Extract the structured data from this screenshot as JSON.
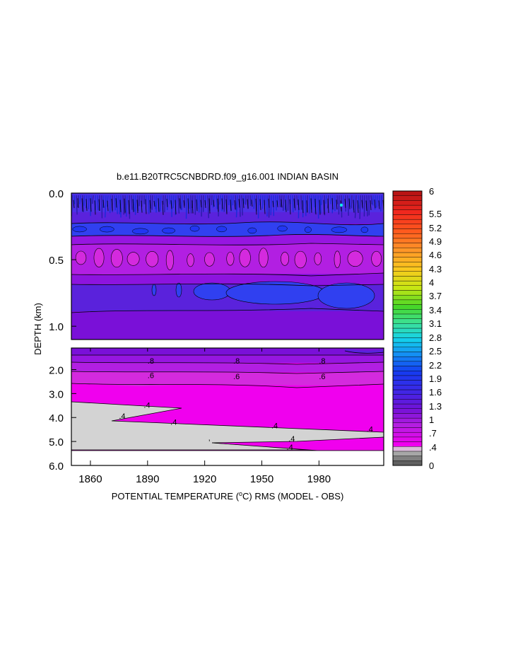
{
  "chart_data": {
    "type": "heatmap",
    "title": "b.e11.B20TRC5CNBDRD.f09_g16.001 INDIAN BASIN",
    "xlabel_prefix": "POTENTIAL TEMPERATURE (",
    "xlabel_unit_sup": "o",
    "xlabel_suffix": "C) RMS (MODEL - OBS)",
    "ylabel": "DEPTH (km)",
    "x_range": [
      1850,
      2014
    ],
    "x_ticks": [
      1860,
      1890,
      1920,
      1950,
      1980
    ],
    "top_panel": {
      "depth_range": [
        0.0,
        1.1
      ],
      "y_ticks": [
        0.0,
        0.5,
        1.0
      ],
      "y_tick_labels": [
        "0.0",
        "0.5",
        "1.0"
      ],
      "depth_profile": [
        {
          "depth": 0.02,
          "value": 1.7
        },
        {
          "depth": 0.12,
          "value": 1.4
        },
        {
          "depth": 0.22,
          "value": 1.3
        },
        {
          "depth": 0.3,
          "value": 1.05
        },
        {
          "depth": 0.4,
          "value": 0.85
        },
        {
          "depth": 0.5,
          "value": 0.75
        },
        {
          "depth": 0.6,
          "value": 0.9
        },
        {
          "depth": 0.75,
          "value": 1.15
        },
        {
          "depth": 0.9,
          "value": 1.1
        },
        {
          "depth": 1.05,
          "value": 0.95
        }
      ]
    },
    "bottom_panel": {
      "depth_range": [
        1.1,
        6.0
      ],
      "y_ticks": [
        2.0,
        3.0,
        4.0,
        5.0,
        6.0
      ],
      "y_tick_labels": [
        "2.0",
        "3.0",
        "4.0",
        "5.0",
        "6.0"
      ],
      "contour_labels": [
        {
          "text": ".8",
          "x": 1890,
          "depth": 1.75
        },
        {
          "text": ".8",
          "x": 1935,
          "depth": 1.75
        },
        {
          "text": ".8",
          "x": 1980,
          "depth": 1.75
        },
        {
          "text": ".6",
          "x": 1890,
          "depth": 2.35
        },
        {
          "text": ".6",
          "x": 1935,
          "depth": 2.4
        },
        {
          "text": ".6",
          "x": 1980,
          "depth": 2.4
        },
        {
          "text": ".4",
          "x": 1888,
          "depth": 3.6
        },
        {
          "text": ".4",
          "x": 1875,
          "depth": 4.05
        },
        {
          "text": ".4",
          "x": 1902,
          "depth": 4.3
        },
        {
          "text": ".4",
          "x": 1955,
          "depth": 4.45
        },
        {
          "text": ".4",
          "x": 2005,
          "depth": 4.6
        },
        {
          "text": ".4",
          "x": 1964,
          "depth": 5.0
        },
        {
          "text": ".4",
          "x": 1963,
          "depth": 5.35
        },
        {
          "text": "’",
          "x": 1922,
          "depth": 5.15
        }
      ]
    },
    "colorbar": {
      "labels": [
        "6",
        "5.5",
        "5.2",
        "4.9",
        "4.6",
        "4.3",
        "4",
        "3.7",
        "3.4",
        "3.1",
        "2.8",
        "2.5",
        "2.2",
        "1.9",
        "1.6",
        "1.3",
        "1",
        ".7",
        ".4",
        "0"
      ]
    },
    "colors": {
      "deep_purple": "#7a10d8",
      "purple": "#9616e0",
      "violet": "#b21fe2",
      "magenta": "#d42ade",
      "bright_magenta": "#f000ee",
      "blue_purple": "#5a22dc",
      "blue": "#3040f0",
      "cyan": "#10e8e8",
      "land_gray": "#d3d3d3"
    }
  }
}
